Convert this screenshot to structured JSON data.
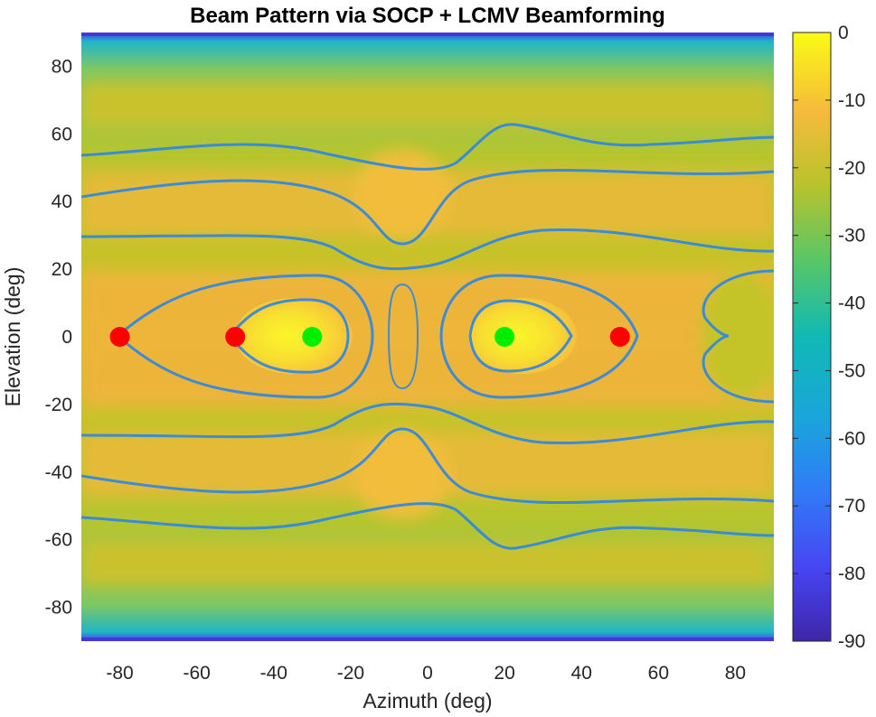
{
  "chart_data": {
    "type": "heatmap",
    "title": "Beam Pattern via SOCP + LCMV Beamforming",
    "xlabel": "Azimuth (deg)",
    "ylabel": "Elevation (deg)",
    "xlim": [
      -90,
      90
    ],
    "ylim": [
      -90,
      90
    ],
    "xticks": [
      "-80",
      "-60",
      "-40",
      "-20",
      "0",
      "20",
      "40",
      "60",
      "80"
    ],
    "yticks": [
      "80",
      "60",
      "40",
      "20",
      "0",
      "-20",
      "-40",
      "-60",
      "-80"
    ],
    "colorbar": {
      "range": [
        -90,
        0
      ],
      "ticks": [
        "0",
        "-10",
        "-20",
        "-30",
        "-40",
        "-50",
        "-60",
        "-70",
        "-80",
        "-90"
      ],
      "colormap": "parula"
    },
    "grid": false,
    "series": [
      {
        "marker": "red-dot",
        "color": "#ff0000",
        "points": [
          [
            -80,
            0
          ],
          [
            -50,
            0
          ],
          [
            50,
            0
          ]
        ]
      },
      {
        "marker": "green-dot",
        "color": "#00ee00",
        "points": [
          [
            -30,
            0
          ],
          [
            20,
            0
          ]
        ]
      }
    ]
  }
}
